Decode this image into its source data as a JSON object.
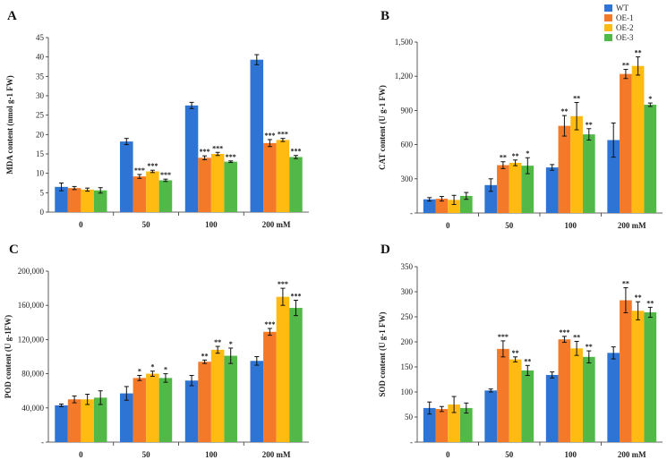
{
  "colors": {
    "WT": "#2e74d4",
    "OE-1": "#f47a2a",
    "OE-2": "#ffbb12",
    "OE-3": "#52b848"
  },
  "legend": [
    "WT",
    "OE-1",
    "OE-2",
    "OE-3"
  ],
  "chart_data": [
    {
      "panel": "A",
      "type": "bar",
      "title": "",
      "ylabel": "MDA content (nmol g-1 FW)",
      "categories": [
        "0",
        "50",
        "100",
        "200 mM"
      ],
      "ylim": [
        0,
        45
      ],
      "yticks": [
        "0",
        "5",
        "10",
        "15",
        "20",
        "25",
        "30",
        "35",
        "40",
        "45"
      ],
      "series": [
        {
          "name": "WT",
          "values": [
            6.5,
            18.2,
            27.5,
            39.3
          ],
          "errors": [
            1.0,
            0.8,
            0.8,
            1.3
          ],
          "sig": [
            "",
            "",
            "",
            ""
          ]
        },
        {
          "name": "OE-1",
          "values": [
            6.2,
            9.2,
            14.0,
            17.8
          ],
          "errors": [
            0.4,
            0.5,
            0.5,
            0.9
          ],
          "sig": [
            "",
            "***",
            "***",
            "***"
          ]
        },
        {
          "name": "OE-2",
          "values": [
            5.8,
            10.5,
            15.0,
            18.6
          ],
          "errors": [
            0.4,
            0.3,
            0.4,
            0.4
          ],
          "sig": [
            "",
            "***",
            "***",
            "***"
          ]
        },
        {
          "name": "OE-3",
          "values": [
            5.6,
            8.2,
            13.0,
            14.2
          ],
          "errors": [
            0.7,
            0.3,
            0.2,
            0.4
          ],
          "sig": [
            "",
            "***",
            "***",
            "***"
          ]
        }
      ]
    },
    {
      "panel": "B",
      "type": "bar",
      "title": "",
      "ylabel": "CAT content (U g-1 FW)",
      "categories": [
        "0",
        "50",
        "100",
        "200 mM"
      ],
      "ylim": [
        0,
        1500
      ],
      "yticks": [
        "-",
        "300",
        "600",
        "900",
        "1,200",
        "1,500"
      ],
      "series": [
        {
          "name": "WT",
          "values": [
            120,
            245,
            400,
            640
          ],
          "errors": [
            15,
            55,
            25,
            150
          ],
          "sig": [
            "",
            "",
            "",
            ""
          ]
        },
        {
          "name": "OE-1",
          "values": [
            125,
            420,
            765,
            1220
          ],
          "errors": [
            20,
            30,
            90,
            40
          ],
          "sig": [
            "",
            "**",
            "**",
            "**"
          ]
        },
        {
          "name": "OE-2",
          "values": [
            115,
            440,
            850,
            1290
          ],
          "errors": [
            40,
            25,
            120,
            80
          ],
          "sig": [
            "",
            "**",
            "**",
            "**"
          ]
        },
        {
          "name": "OE-3",
          "values": [
            150,
            415,
            690,
            950
          ],
          "errors": [
            30,
            70,
            50,
            15
          ],
          "sig": [
            "",
            "*",
            "**",
            "*"
          ]
        }
      ]
    },
    {
      "panel": "C",
      "type": "bar",
      "title": "",
      "ylabel": "POD content (U g-1FW)",
      "categories": [
        "0",
        "50",
        "100",
        "200 mM"
      ],
      "ylim": [
        0,
        200000
      ],
      "yticks": [
        "-",
        "40,000",
        "80,000",
        "120,000",
        "160,000",
        "200,000"
      ],
      "series": [
        {
          "name": "WT",
          "values": [
            43000,
            57000,
            72000,
            95000
          ],
          "errors": [
            1500,
            8000,
            6000,
            5000
          ],
          "sig": [
            "",
            "",
            "",
            ""
          ]
        },
        {
          "name": "OE-1",
          "values": [
            50000,
            75000,
            94000,
            129000
          ],
          "errors": [
            4000,
            3000,
            2000,
            4000
          ],
          "sig": [
            "",
            "*",
            "**",
            "***"
          ]
        },
        {
          "name": "OE-2",
          "values": [
            50000,
            80000,
            108000,
            170000
          ],
          "errors": [
            6000,
            3000,
            4000,
            10000
          ],
          "sig": [
            "",
            "*",
            "**",
            "***"
          ]
        },
        {
          "name": "OE-3",
          "values": [
            52000,
            75000,
            101000,
            157000
          ],
          "errors": [
            8000,
            5000,
            9000,
            9000
          ],
          "sig": [
            "",
            "*",
            "*",
            "***"
          ]
        }
      ]
    },
    {
      "panel": "D",
      "type": "bar",
      "title": "",
      "ylabel": "SOD content (U g-1 FW)",
      "categories": [
        "0",
        "50",
        "100",
        "200 mM"
      ],
      "ylim": [
        0,
        350
      ],
      "yticks": [
        "-",
        "50",
        "100",
        "150",
        "200",
        "250",
        "300",
        "350"
      ],
      "series": [
        {
          "name": "WT",
          "values": [
            68,
            103,
            134,
            178
          ],
          "errors": [
            12,
            3,
            6,
            12
          ],
          "sig": [
            "",
            "",
            "",
            ""
          ]
        },
        {
          "name": "OE-1",
          "values": [
            66,
            186,
            205,
            283
          ],
          "errors": [
            5,
            16,
            6,
            25
          ],
          "sig": [
            "",
            "***",
            "***",
            "**"
          ]
        },
        {
          "name": "OE-2",
          "values": [
            75,
            165,
            187,
            262
          ],
          "errors": [
            16,
            5,
            14,
            18
          ],
          "sig": [
            "",
            "**",
            "**",
            "**"
          ]
        },
        {
          "name": "OE-3",
          "values": [
            68,
            143,
            170,
            259
          ],
          "errors": [
            10,
            10,
            12,
            10
          ],
          "sig": [
            "",
            "**",
            "**",
            "**"
          ]
        }
      ]
    }
  ]
}
